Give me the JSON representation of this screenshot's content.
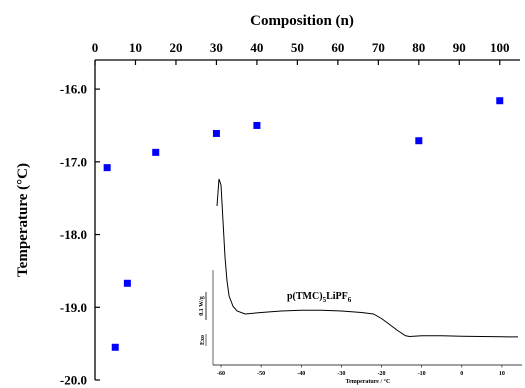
{
  "chart_data": {
    "type": "scatter",
    "xlabel": "Composition (n)",
    "ylabel": "Temperature (°C)",
    "xlim": [
      0,
      105
    ],
    "ylim": [
      -20.0,
      -15.6
    ],
    "x_ticks": [
      0,
      10,
      20,
      30,
      40,
      50,
      60,
      70,
      80,
      90,
      100
    ],
    "y_ticks": [
      -20.0,
      -19.0,
      -18.0,
      -17.0,
      -16.0
    ],
    "y_tick_labels": [
      "-20.0",
      "-19.0",
      "-18.0",
      "-17.0",
      "-16.0"
    ],
    "x_axis_position": "top",
    "grid": false,
    "legend": "none",
    "marker": "square",
    "marker_color": "#0000ff",
    "series": [
      {
        "x": [
          3,
          5,
          8,
          15,
          30,
          40,
          80,
          100
        ],
        "y": [
          -17.08,
          -19.55,
          -18.67,
          -16.87,
          -16.61,
          -16.5,
          -16.71,
          -16.16
        ]
      }
    ],
    "inset": {
      "type": "line",
      "annotation_main": "p(TMC)",
      "annotation_sub": "5",
      "annotation_main2": "LiPF",
      "annotation_sub2": "6",
      "xlabel": "Temperature / °C",
      "ylabel_scale": "0.1 W/g",
      "ylabel_direction": "Exo",
      "xlim": [
        -62,
        15
      ],
      "x_ticks": [
        -60,
        -50,
        -40,
        -30,
        -20,
        -10,
        0,
        10
      ],
      "line_color": "#000000",
      "curve": {
        "x": [
          -61,
          -60.5,
          -60,
          -59.5,
          -59,
          -58.5,
          -58,
          -57,
          -56,
          -54,
          -50,
          -45,
          -40,
          -35,
          -30,
          -25,
          -22,
          -20,
          -18,
          -16,
          -14,
          -13,
          -12,
          -10,
          -5,
          0,
          5,
          10,
          14
        ],
        "y": [
          0.72,
          0.9,
          0.86,
          0.62,
          0.38,
          0.22,
          0.12,
          0.05,
          0.02,
          0.0,
          0.01,
          0.02,
          0.025,
          0.025,
          0.02,
          0.01,
          0.0,
          -0.03,
          -0.07,
          -0.11,
          -0.145,
          -0.15,
          -0.148,
          -0.145,
          -0.145,
          -0.148,
          -0.15,
          -0.152,
          -0.153
        ]
      }
    }
  }
}
